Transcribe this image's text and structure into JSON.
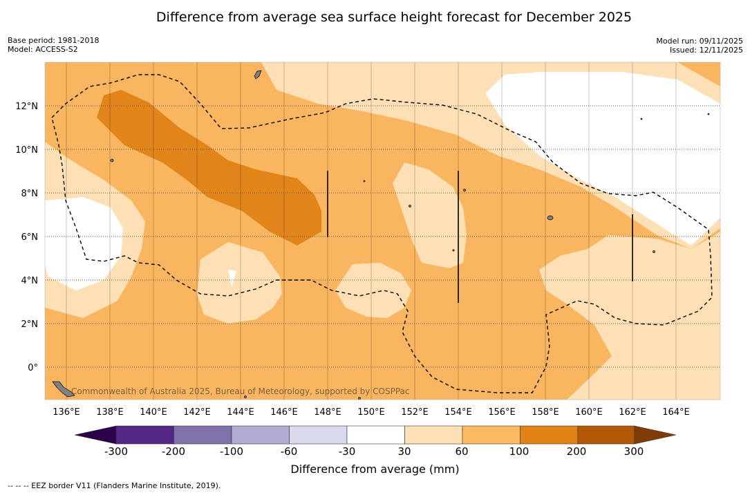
{
  "title": "Difference from average sea surface height forecast for December 2025",
  "meta_left": {
    "base_period": "Base period: 1981-2018",
    "model": "Model: ACCESS-S2"
  },
  "meta_right": {
    "model_run": "Model run: 09/11/2025",
    "issued": "Issued: 12/11/2025"
  },
  "map": {
    "lat_labels": [
      "12°N",
      "10°N",
      "8°N",
      "6°N",
      "4°N",
      "2°N",
      "0°"
    ],
    "lon_labels": [
      "136°E",
      "138°E",
      "140°E",
      "142°E",
      "144°E",
      "146°E",
      "148°E",
      "150°E",
      "152°E",
      "154°E",
      "156°E",
      "158°E",
      "160°E",
      "162°E",
      "164°E"
    ],
    "copyright": "Commonwealth of Australia 2025, Bureau of Meteorology, supported by COSPPac",
    "colors": {
      "band_30_60": "#fde0b5",
      "band_60_100": "#f9b55f",
      "band_100_200": "#e1841a",
      "land": "#808080"
    }
  },
  "colorbar": {
    "title": "Difference from average (mm)",
    "labels": [
      "-300",
      "-200",
      "-100",
      "-60",
      "-30",
      "30",
      "60",
      "100",
      "200",
      "300"
    ],
    "colors": [
      "#2d004b",
      "#542788",
      "#8073ac",
      "#b2abd2",
      "#d8daeb",
      "#ffffff",
      "#fee0b6",
      "#fdb863",
      "#e08214",
      "#b35806",
      "#7f3b08"
    ]
  },
  "footnote": "--  --  -- EEZ border V11 (Flanders Marine Institute, 2019)."
}
